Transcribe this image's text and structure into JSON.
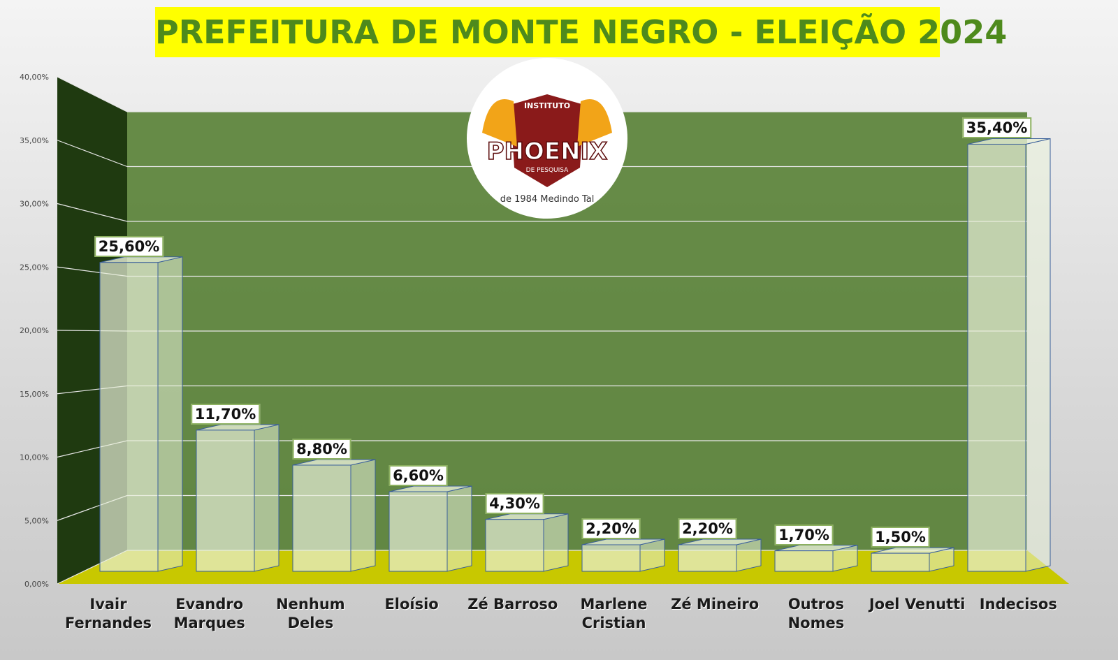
{
  "chart_data": {
    "type": "bar",
    "title": "PREFEITURA DE MONTE NEGRO - ELEIÇÃO 2024",
    "logo": {
      "top": "INSTITUTO",
      "name": "PHOENIX",
      "sub": "DE PESQUISA",
      "tagline": "de 1984 Medindo Tal"
    },
    "categories": [
      "Ivair Fernandes",
      "Evandro Marques",
      "Nenhum Deles",
      "Eloísio",
      "Zé Barroso",
      "Marlene Cristian",
      "Zé Mineiro",
      "Outros Nomes",
      "Joel Venutti",
      "Indecisos"
    ],
    "values": [
      25.6,
      11.7,
      8.8,
      6.6,
      4.3,
      2.2,
      2.2,
      1.7,
      1.5,
      35.4
    ],
    "value_labels": [
      "25,60%",
      "11,70%",
      "8,80%",
      "6,60%",
      "4,30%",
      "2,20%",
      "2,20%",
      "1,70%",
      "1,50%",
      "35,40%"
    ],
    "color": "#e8f0d8",
    "ylim": [
      0,
      40
    ],
    "yticks": [
      {
        "value": 0,
        "label": "0,00%"
      },
      {
        "value": 5,
        "label": "5,00%"
      },
      {
        "value": 10,
        "label": "10,00%"
      },
      {
        "value": 15,
        "label": "15,00%"
      },
      {
        "value": 20,
        "label": "20,00%"
      },
      {
        "value": 25,
        "label": "25,00%"
      },
      {
        "value": 30,
        "label": "30,00%"
      },
      {
        "value": 35,
        "label": "35,00%"
      },
      {
        "value": 40,
        "label": "40,00%"
      }
    ],
    "grid": true
  }
}
